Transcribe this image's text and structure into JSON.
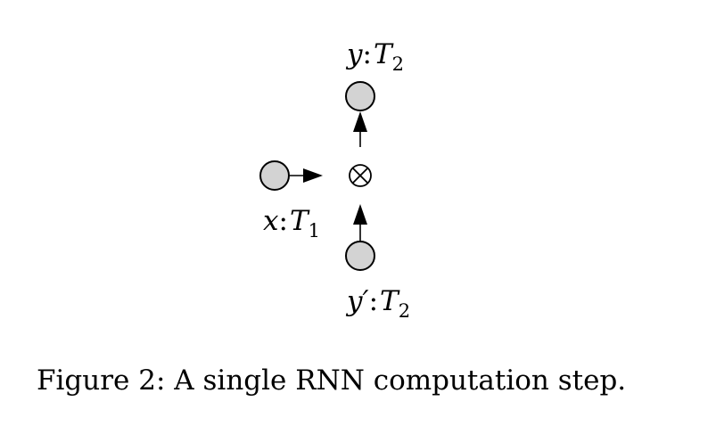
{
  "figure": {
    "caption": "Figure 2: A single RNN computation step.",
    "operator_symbol": "⊗",
    "nodes": {
      "output": {
        "var": "y",
        "colon": ":",
        "type": "T",
        "type_sub": "2"
      },
      "input": {
        "var": "x",
        "colon": ":",
        "type": "T",
        "type_sub": "1"
      },
      "previous": {
        "var": "y′",
        "colon": ":",
        "type": "T",
        "type_sub": "2"
      }
    },
    "colors": {
      "node_fill": "#d3d3d3",
      "stroke": "#000000",
      "background": "#ffffff"
    }
  }
}
